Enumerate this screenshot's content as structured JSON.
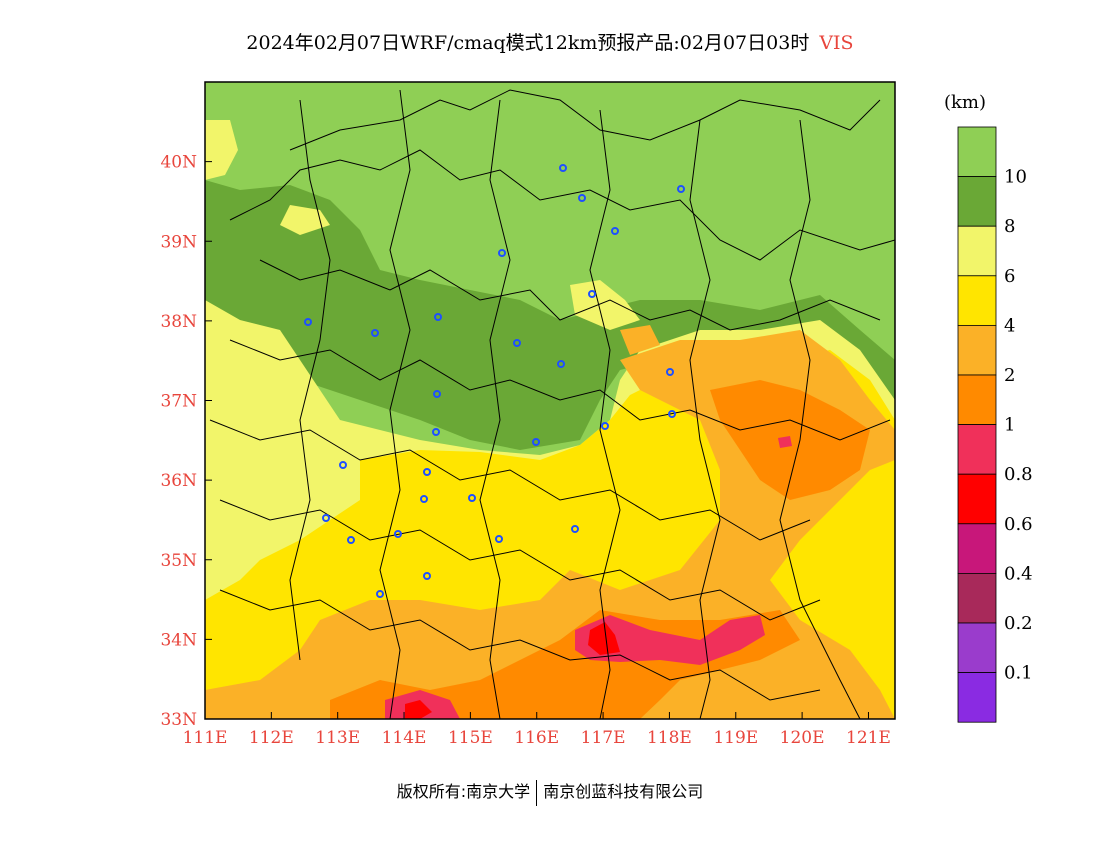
{
  "header": {
    "title": "2024年02月07日WRF/cmaq模式12km预报产品:02月07日03时",
    "variable": "VIS"
  },
  "footer": {
    "left": "版权所有:南京大学",
    "right": "南京创蓝科技有限公司"
  },
  "map": {
    "lat_labels": [
      "40N",
      "39N",
      "38N",
      "37N",
      "36N",
      "35N",
      "34N",
      "33N"
    ],
    "lon_labels": [
      "111E",
      "112E",
      "113E",
      "114E",
      "115E",
      "116E",
      "117E",
      "118E",
      "119E",
      "120E",
      "121E"
    ],
    "lon_range": [
      111,
      121.4
    ],
    "lat_range": [
      33,
      41
    ],
    "colors": {
      "vis_gt10": "#8fcf55",
      "vis_8_10": "#6aa836",
      "vis_6_8": "#f2f56a",
      "vis_4_6": "#ffe500",
      "vis_2_4": "#fbb127",
      "vis_1_2": "#ff8a00",
      "vis_08_1": "#f0305a",
      "vis_06_08": "#ff0000",
      "vis_04_06": "#c8177a",
      "vis_02_04": "#a8295a",
      "vis_01_02": "#9a3ccc",
      "vis_lt01": "#8a2be2"
    }
  },
  "colorbar": {
    "unit": "(km)",
    "labels": [
      "10",
      "8",
      "6",
      "4",
      "2",
      "1",
      "0.8",
      "0.6",
      "0.4",
      "0.2",
      "0.1"
    ],
    "segments": [
      "#8fcf55",
      "#6aa836",
      "#f2f56a",
      "#ffe500",
      "#fbb127",
      "#ff8a00",
      "#f0305a",
      "#ff0000",
      "#c8177a",
      "#a8295a",
      "#9a3ccc",
      "#8a2be2"
    ]
  }
}
